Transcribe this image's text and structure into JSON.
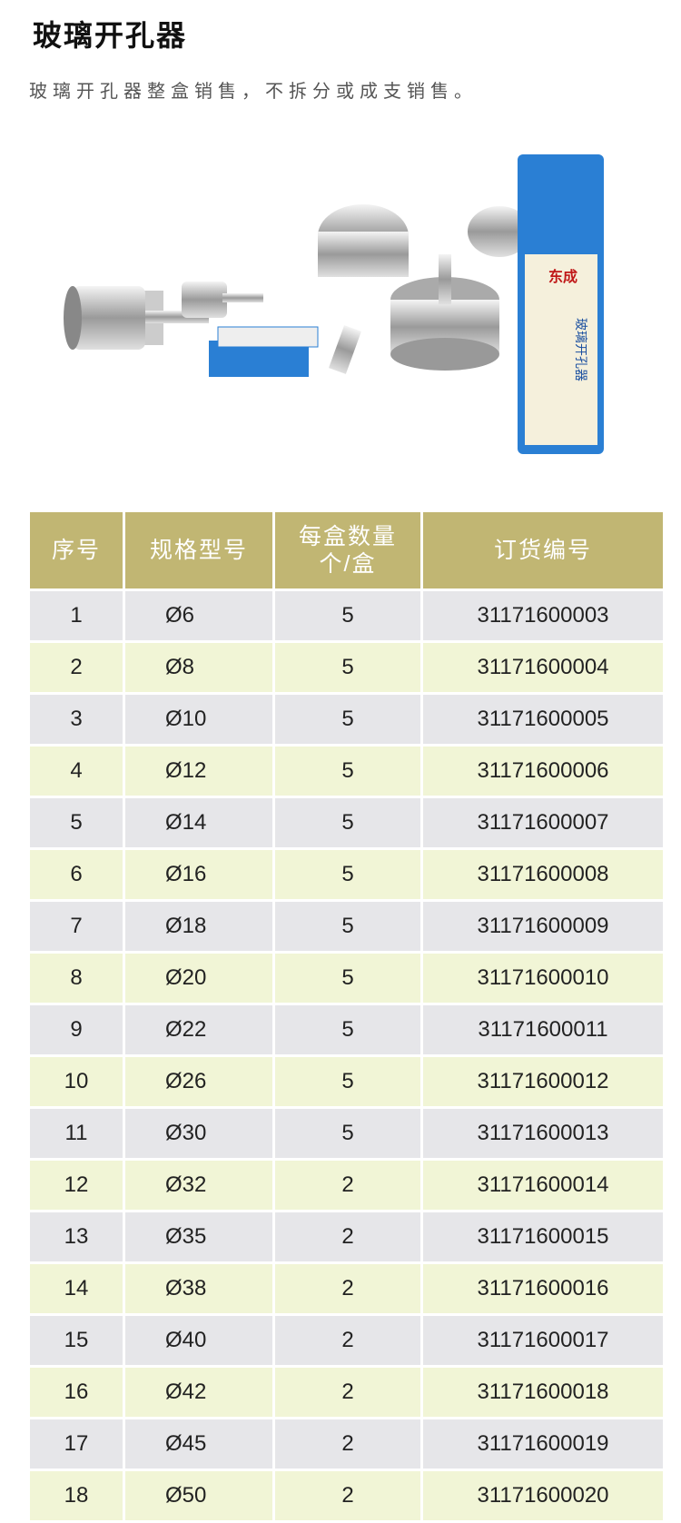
{
  "page": {
    "title": "玻璃开孔器",
    "subtitle": "玻璃开孔器整盒销售，不拆分或成支销售。"
  },
  "product_image": {
    "brand": "东成",
    "box_label": "玻璃开孔器",
    "box_color": "#2a7fd4"
  },
  "table": {
    "headers": [
      "序号",
      "规格型号",
      "每盒数量 个/盒",
      "订货编号"
    ],
    "rows": [
      [
        "1",
        "Ø6",
        "5",
        "31171600003"
      ],
      [
        "2",
        "Ø8",
        "5",
        "31171600004"
      ],
      [
        "3",
        "Ø10",
        "5",
        "31171600005"
      ],
      [
        "4",
        "Ø12",
        "5",
        "31171600006"
      ],
      [
        "5",
        "Ø14",
        "5",
        "31171600007"
      ],
      [
        "6",
        "Ø16",
        "5",
        "31171600008"
      ],
      [
        "7",
        "Ø18",
        "5",
        "31171600009"
      ],
      [
        "8",
        "Ø20",
        "5",
        "31171600010"
      ],
      [
        "9",
        "Ø22",
        "5",
        "31171600011"
      ],
      [
        "10",
        "Ø26",
        "5",
        "31171600012"
      ],
      [
        "11",
        "Ø30",
        "5",
        "31171600013"
      ],
      [
        "12",
        "Ø32",
        "2",
        "31171600014"
      ],
      [
        "13",
        "Ø35",
        "2",
        "31171600015"
      ],
      [
        "14",
        "Ø38",
        "2",
        "31171600016"
      ],
      [
        "15",
        "Ø40",
        "2",
        "31171600017"
      ],
      [
        "16",
        "Ø42",
        "2",
        "31171600018"
      ],
      [
        "17",
        "Ø45",
        "2",
        "31171600019"
      ],
      [
        "18",
        "Ø50",
        "2",
        "31171600020"
      ]
    ]
  },
  "colors": {
    "header": "#c1b673",
    "row_gray": "#e6e6e9",
    "row_green": "#f1f5d6"
  }
}
